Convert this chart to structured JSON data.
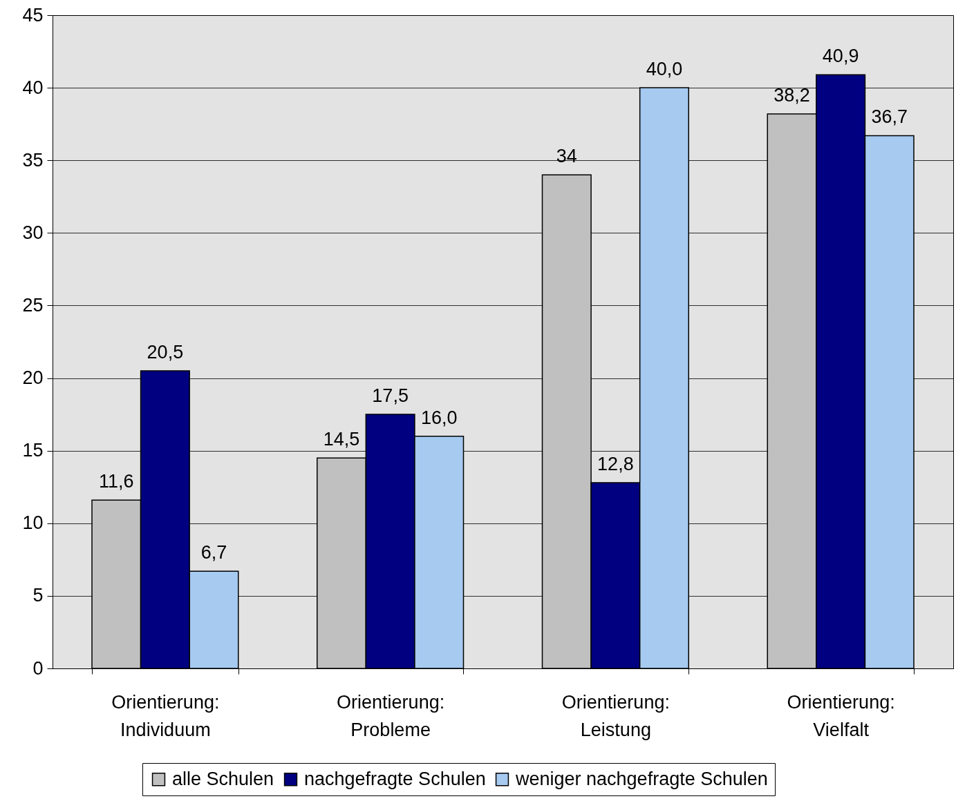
{
  "chart_data": {
    "type": "bar",
    "categories": [
      "Orientierung:\nIndividuum",
      "Orientierung:\nProbleme",
      "Orientierung:\nLeistung",
      "Orientierung:\nVielfalt"
    ],
    "series": [
      {
        "name": "alle Schulen",
        "color": "#c0c0c0",
        "values": [
          11.6,
          14.5,
          34,
          38.2
        ],
        "value_labels": [
          "11,6",
          "14,5",
          "34",
          "38,2"
        ]
      },
      {
        "name": "nachgefragte Schulen",
        "color": "#000080",
        "values": [
          20.5,
          17.5,
          12.8,
          40.9
        ],
        "value_labels": [
          "20,5",
          "17,5",
          "12,8",
          "40,9"
        ]
      },
      {
        "name": "weniger nachgefragte Schulen",
        "color": "#a6caf0",
        "values": [
          6.7,
          16.0,
          40.0,
          36.7
        ],
        "value_labels": [
          "6,7",
          "16,0",
          "40,0",
          "36,7"
        ]
      }
    ],
    "ylim": [
      0,
      45
    ],
    "yticks": [
      0,
      5,
      10,
      15,
      20,
      25,
      30,
      35,
      40,
      45
    ],
    "grid": "y",
    "legend": "bottom"
  }
}
